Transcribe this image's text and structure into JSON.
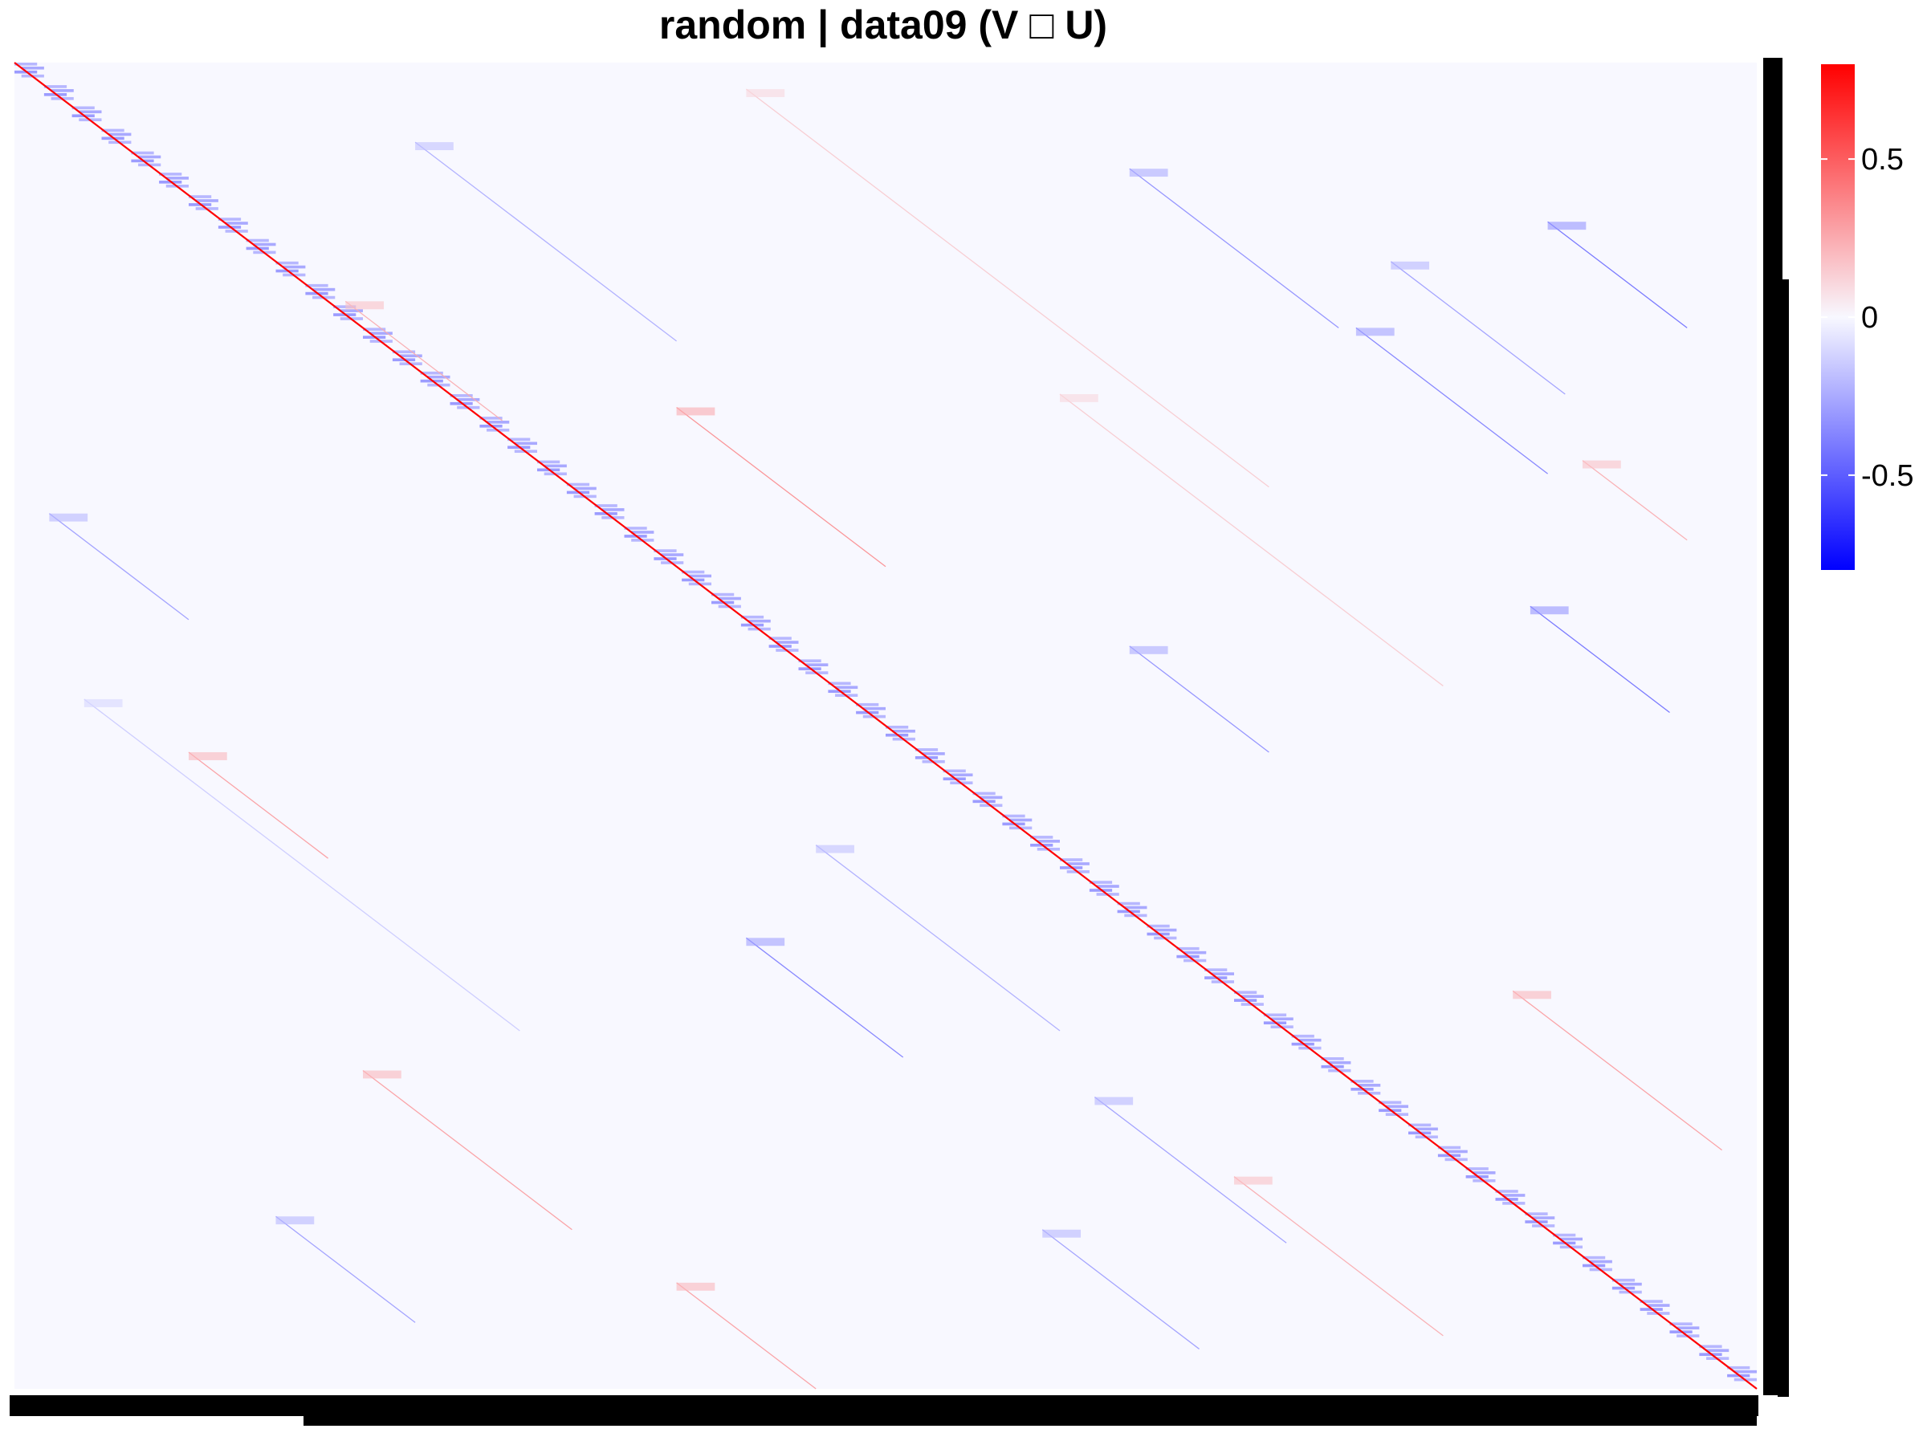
{
  "chart_data": {
    "type": "heatmap",
    "title": "random | data09 (V □ U)",
    "xlabel": "",
    "ylabel": "",
    "grid": false,
    "color_scale": {
      "low": "#0000ff",
      "mid": "#f8f8ff",
      "high": "#ff0000",
      "limits": [
        -0.8,
        0.8
      ],
      "legend_position": "right",
      "ticks": [
        0.5,
        0,
        -0.5
      ],
      "tick_labels": [
        "0.5",
        "0",
        "-0.5"
      ]
    },
    "matrix_size": 1000,
    "n_blocks": 60,
    "diagonal_value": 0.8,
    "background_value": 0.0,
    "diagonal_block_pattern": {
      "block_length_rows": 17,
      "values": "mixed negative within block, approx -0.2 to -0.4"
    },
    "off_diagonal_streaks": [
      {
        "row_start": 20,
        "col_start": 420,
        "length": 300,
        "value": 0.15
      },
      {
        "row_start": 60,
        "col_start": 230,
        "length": 150,
        "value": -0.25
      },
      {
        "row_start": 80,
        "col_start": 640,
        "length": 120,
        "value": -0.35
      },
      {
        "row_start": 120,
        "col_start": 880,
        "length": 80,
        "value": -0.45
      },
      {
        "row_start": 150,
        "col_start": 790,
        "length": 100,
        "value": -0.3
      },
      {
        "row_start": 200,
        "col_start": 770,
        "length": 110,
        "value": -0.4
      },
      {
        "row_start": 180,
        "col_start": 190,
        "length": 90,
        "value": 0.25
      },
      {
        "row_start": 260,
        "col_start": 380,
        "length": 120,
        "value": 0.35
      },
      {
        "row_start": 340,
        "col_start": 20,
        "length": 80,
        "value": -0.3
      },
      {
        "row_start": 410,
        "col_start": 870,
        "length": 80,
        "value": -0.45
      },
      {
        "row_start": 440,
        "col_start": 640,
        "length": 80,
        "value": -0.35
      },
      {
        "row_start": 520,
        "col_start": 100,
        "length": 80,
        "value": 0.3
      },
      {
        "row_start": 590,
        "col_start": 460,
        "length": 140,
        "value": -0.25
      },
      {
        "row_start": 660,
        "col_start": 420,
        "length": 90,
        "value": -0.4
      },
      {
        "row_start": 700,
        "col_start": 860,
        "length": 120,
        "value": 0.3
      },
      {
        "row_start": 760,
        "col_start": 200,
        "length": 120,
        "value": 0.3
      },
      {
        "row_start": 780,
        "col_start": 620,
        "length": 110,
        "value": -0.3
      },
      {
        "row_start": 840,
        "col_start": 700,
        "length": 120,
        "value": 0.25
      },
      {
        "row_start": 870,
        "col_start": 150,
        "length": 80,
        "value": -0.3
      },
      {
        "row_start": 880,
        "col_start": 590,
        "length": 90,
        "value": -0.3
      },
      {
        "row_start": 920,
        "col_start": 380,
        "length": 90,
        "value": 0.3
      },
      {
        "row_start": 250,
        "col_start": 600,
        "length": 220,
        "value": 0.15
      },
      {
        "row_start": 480,
        "col_start": 40,
        "length": 250,
        "value": -0.15
      },
      {
        "row_start": 300,
        "col_start": 900,
        "length": 60,
        "value": 0.25
      }
    ],
    "x_tick_labels_note": "≈1000 tiny overlapping labels",
    "y_tick_labels_note": "≈1000 tiny overlapping labels"
  }
}
